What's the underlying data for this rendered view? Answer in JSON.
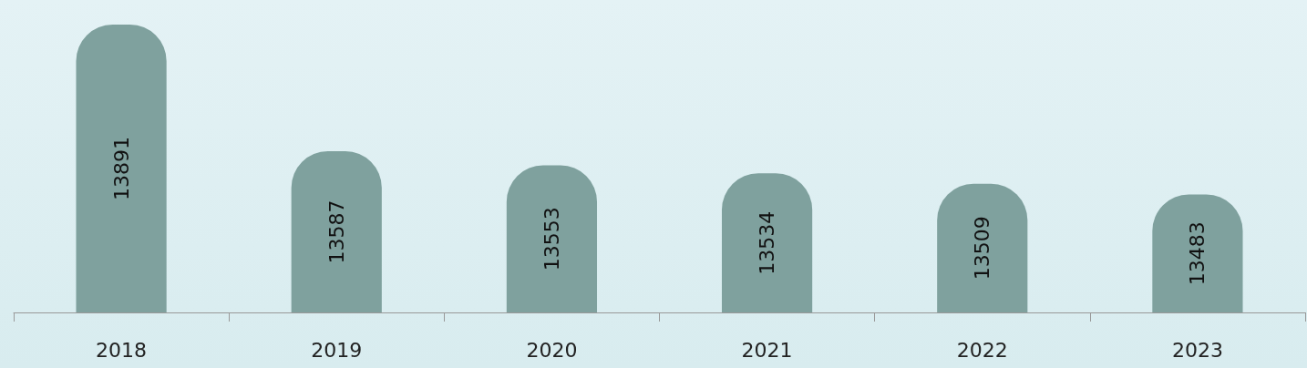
{
  "chart_data": {
    "type": "bar",
    "categories": [
      "2018",
      "2019",
      "2020",
      "2021",
      "2022",
      "2023"
    ],
    "values": [
      13891,
      13587,
      13553,
      13534,
      13509,
      13483
    ],
    "color": "#7fa19e",
    "data_labels": true,
    "ylim": [
      13200,
      13950
    ],
    "tick_labels": "x"
  }
}
